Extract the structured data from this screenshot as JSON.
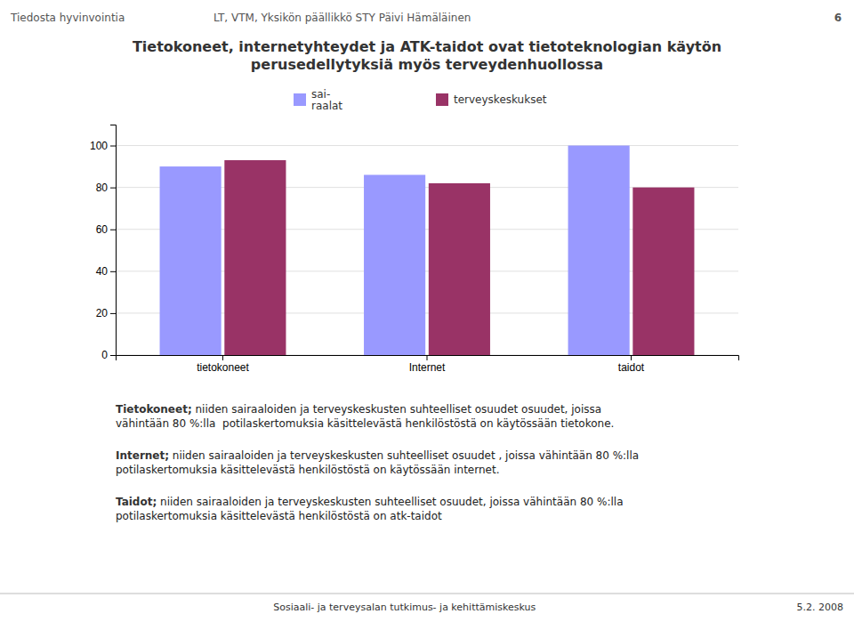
{
  "chart_data": {
    "type": "bar",
    "title": "Tietokoneet, internetyhteydet ja ATK-taidot ovat tietoteknologian käytön\nperusedellytyksiä myös terveydenhuollossa",
    "header": [
      "Tiedosta hyvinvointia",
      "LT, VTM, Yksikön päällikkö STY Päivi Hämäläinen",
      "6"
    ],
    "categories": [
      "tietokoneet",
      "Internet",
      "taidot"
    ],
    "series": [
      {
        "name": "sai-\nraalat",
        "color": "#9999FF",
        "values": [
          90,
          86,
          100
        ]
      },
      {
        "name": "terveyskeskukset",
        "color": "#993366",
        "values": [
          93,
          82,
          80
        ]
      }
    ],
    "ylim": [
      0,
      110
    ],
    "yticks": [
      0,
      20,
      40,
      60,
      80,
      100
    ],
    "grid": true,
    "annotations": [
      {
        "label": "Tietokoneet;",
        "text": " niiden sairaaloiden ja terveyskeskusten suhteelliset osuudet osuudet, joissa\nvähintään 80 %:lla  potilaskertomuksia käsittelevästä henkilöstöstä on käytössään tietokone."
      },
      {
        "label": "Internet;",
        "text": " niiden sairaaloiden ja terveyskeskusten suhteelliset osuudet , joissa vähintään 80 %:lla\npotilaskertomuksia käsittelevästä henkilöstöstä on käytössään internet."
      },
      {
        "label": "Taidot;",
        "text": " niiden sairaaloiden ja terveyskeskusten suhteelliset osuudet, joissa vähintään 80 %:lla\npotilaskertomuksia käsittelevästä henkilöstöstä on atk-taidot"
      }
    ],
    "footer": [
      "Sosiaali- ja terveysalan tutkimus- ja kehittämiskeskus",
      "5.2. 2008"
    ]
  }
}
